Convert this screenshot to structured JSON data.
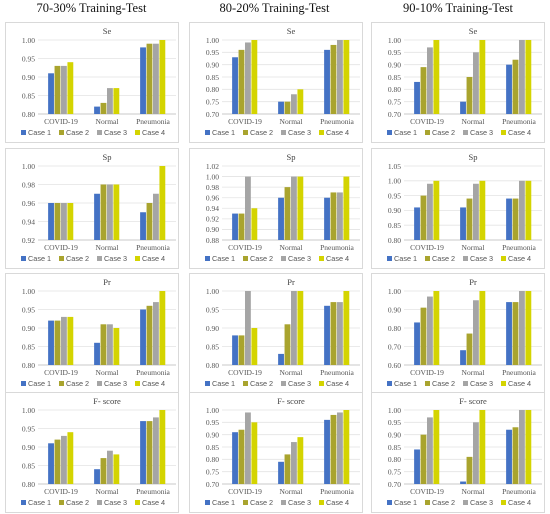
{
  "columns": [
    {
      "title": "70-30% Training-Test"
    },
    {
      "title": "80-20% Training-Test"
    },
    {
      "title": "90-10% Training-Test"
    }
  ],
  "legend": [
    "Case 1",
    "Case 2",
    "Case 3",
    "Case 4"
  ],
  "colors": [
    "#4472c4",
    "#a9a42e",
    "#a5a5a5",
    "#d4d400"
  ],
  "chart_data": [
    {
      "type": "bar",
      "title": "Se",
      "categories": [
        "COVID-19",
        "Normal",
        "Pneumonia"
      ],
      "ylim": [
        0.8,
        1.0
      ],
      "yticks": [
        0.8,
        0.85,
        0.9,
        0.95,
        1.0
      ],
      "series": [
        {
          "name": "Case 1",
          "values": [
            0.91,
            0.82,
            0.98
          ]
        },
        {
          "name": "Case 2",
          "values": [
            0.93,
            0.83,
            0.99
          ]
        },
        {
          "name": "Case 3",
          "values": [
            0.93,
            0.87,
            0.99
          ]
        },
        {
          "name": "Case 4",
          "values": [
            0.94,
            0.87,
            1.0
          ]
        }
      ]
    },
    {
      "type": "bar",
      "title": "Se",
      "categories": [
        "COVID-19",
        "Normal",
        "Pneumonia"
      ],
      "ylim": [
        0.7,
        1.0
      ],
      "yticks": [
        0.7,
        0.75,
        0.8,
        0.85,
        0.9,
        0.95,
        1.0
      ],
      "series": [
        {
          "name": "Case 1",
          "values": [
            0.93,
            0.75,
            0.96
          ]
        },
        {
          "name": "Case 2",
          "values": [
            0.96,
            0.75,
            0.98
          ]
        },
        {
          "name": "Case 3",
          "values": [
            0.99,
            0.78,
            1.0
          ]
        },
        {
          "name": "Case 4",
          "values": [
            1.0,
            0.8,
            1.0
          ]
        }
      ]
    },
    {
      "type": "bar",
      "title": "Se",
      "categories": [
        "COVID-19",
        "Normal",
        "Pneumonia"
      ],
      "ylim": [
        0.7,
        1.0
      ],
      "yticks": [
        0.7,
        0.75,
        0.8,
        0.85,
        0.9,
        0.95,
        1.0
      ],
      "series": [
        {
          "name": "Case 1",
          "values": [
            0.83,
            0.75,
            0.9
          ]
        },
        {
          "name": "Case 2",
          "values": [
            0.89,
            0.85,
            0.92
          ]
        },
        {
          "name": "Case 3",
          "values": [
            0.97,
            0.95,
            1.0
          ]
        },
        {
          "name": "Case 4",
          "values": [
            1.0,
            1.0,
            1.0
          ]
        }
      ]
    },
    {
      "type": "bar",
      "title": "Sp",
      "categories": [
        "COVID-19",
        "Normal",
        "Pneumonia"
      ],
      "ylim": [
        0.92,
        1.0
      ],
      "yticks": [
        0.92,
        0.94,
        0.96,
        0.98,
        1.0
      ],
      "series": [
        {
          "name": "Case 1",
          "values": [
            0.96,
            0.97,
            0.95
          ]
        },
        {
          "name": "Case 2",
          "values": [
            0.96,
            0.98,
            0.96
          ]
        },
        {
          "name": "Case 3",
          "values": [
            0.96,
            0.98,
            0.97
          ]
        },
        {
          "name": "Case 4",
          "values": [
            0.96,
            0.98,
            1.0
          ]
        }
      ]
    },
    {
      "type": "bar",
      "title": "Sp",
      "categories": [
        "COVID-19",
        "Normal",
        "Pneumonia"
      ],
      "ylim": [
        0.88,
        1.02
      ],
      "yticks": [
        0.88,
        0.9,
        0.92,
        0.94,
        0.96,
        0.98,
        1.0,
        1.02
      ],
      "series": [
        {
          "name": "Case 1",
          "values": [
            0.93,
            0.96,
            0.96
          ]
        },
        {
          "name": "Case 2",
          "values": [
            0.93,
            0.98,
            0.97
          ]
        },
        {
          "name": "Case 3",
          "values": [
            1.0,
            1.0,
            0.97
          ]
        },
        {
          "name": "Case 4",
          "values": [
            0.94,
            1.0,
            1.0
          ]
        }
      ]
    },
    {
      "type": "bar",
      "title": "Sp",
      "categories": [
        "COVID-19",
        "Normal",
        "Pneumonia"
      ],
      "ylim": [
        0.8,
        1.05
      ],
      "yticks": [
        0.8,
        0.85,
        0.9,
        0.95,
        1.0,
        1.05
      ],
      "series": [
        {
          "name": "Case 1",
          "values": [
            0.91,
            0.91,
            0.94
          ]
        },
        {
          "name": "Case 2",
          "values": [
            0.95,
            0.94,
            0.94
          ]
        },
        {
          "name": "Case 3",
          "values": [
            0.99,
            0.99,
            1.0
          ]
        },
        {
          "name": "Case 4",
          "values": [
            1.0,
            1.0,
            1.0
          ]
        }
      ]
    },
    {
      "type": "bar",
      "title": "Pr",
      "categories": [
        "COVID-19",
        "Normal",
        "Pneumonia"
      ],
      "ylim": [
        0.8,
        1.0
      ],
      "yticks": [
        0.8,
        0.85,
        0.9,
        0.95,
        1.0
      ],
      "series": [
        {
          "name": "Case 1",
          "values": [
            0.92,
            0.86,
            0.95
          ]
        },
        {
          "name": "Case 2",
          "values": [
            0.92,
            0.91,
            0.96
          ]
        },
        {
          "name": "Case 3",
          "values": [
            0.93,
            0.91,
            0.97
          ]
        },
        {
          "name": "Case 4",
          "values": [
            0.93,
            0.9,
            1.0
          ]
        }
      ]
    },
    {
      "type": "bar",
      "title": "Pr",
      "categories": [
        "COVID-19",
        "Normal",
        "Pneumonia"
      ],
      "ylim": [
        0.8,
        1.0
      ],
      "yticks": [
        0.8,
        0.85,
        0.9,
        0.95,
        1.0
      ],
      "series": [
        {
          "name": "Case 1",
          "values": [
            0.88,
            0.83,
            0.96
          ]
        },
        {
          "name": "Case 2",
          "values": [
            0.88,
            0.91,
            0.97
          ]
        },
        {
          "name": "Case 3",
          "values": [
            1.0,
            1.0,
            0.97
          ]
        },
        {
          "name": "Case 4",
          "values": [
            0.9,
            1.0,
            1.0
          ]
        }
      ]
    },
    {
      "type": "bar",
      "title": "Pr",
      "categories": [
        "COVID-19",
        "Normal",
        "Pneumonia"
      ],
      "ylim": [
        0.6,
        1.0
      ],
      "yticks": [
        0.6,
        0.7,
        0.8,
        0.9,
        1.0
      ],
      "series": [
        {
          "name": "Case 1",
          "values": [
            0.83,
            0.68,
            0.94
          ]
        },
        {
          "name": "Case 2",
          "values": [
            0.91,
            0.77,
            0.94
          ]
        },
        {
          "name": "Case 3",
          "values": [
            0.97,
            0.95,
            1.0
          ]
        },
        {
          "name": "Case 4",
          "values": [
            1.0,
            1.0,
            1.0
          ]
        }
      ]
    },
    {
      "type": "bar",
      "title": "F- score",
      "categories": [
        "COVID-19",
        "Normal",
        "Pneumonia"
      ],
      "ylim": [
        0.8,
        1.0
      ],
      "yticks": [
        0.8,
        0.85,
        0.9,
        0.95,
        1.0
      ],
      "series": [
        {
          "name": "Case 1",
          "values": [
            0.91,
            0.84,
            0.97
          ]
        },
        {
          "name": "Case 2",
          "values": [
            0.92,
            0.87,
            0.97
          ]
        },
        {
          "name": "Case 3",
          "values": [
            0.93,
            0.89,
            0.98
          ]
        },
        {
          "name": "Case 4",
          "values": [
            0.94,
            0.88,
            1.0
          ]
        }
      ]
    },
    {
      "type": "bar",
      "title": "F- score",
      "categories": [
        "COVID-19",
        "Normal",
        "Pneumonia"
      ],
      "ylim": [
        0.7,
        1.0
      ],
      "yticks": [
        0.7,
        0.75,
        0.8,
        0.85,
        0.9,
        0.95,
        1.0
      ],
      "series": [
        {
          "name": "Case 1",
          "values": [
            0.91,
            0.79,
            0.96
          ]
        },
        {
          "name": "Case 2",
          "values": [
            0.92,
            0.82,
            0.98
          ]
        },
        {
          "name": "Case 3",
          "values": [
            0.99,
            0.87,
            0.99
          ]
        },
        {
          "name": "Case 4",
          "values": [
            0.95,
            0.89,
            1.0
          ]
        }
      ]
    },
    {
      "type": "bar",
      "title": "F- score",
      "categories": [
        "COVID-19",
        "Normal",
        "Pneumonia"
      ],
      "ylim": [
        0.7,
        1.0
      ],
      "yticks": [
        0.7,
        0.75,
        0.8,
        0.85,
        0.9,
        0.95,
        1.0
      ],
      "series": [
        {
          "name": "Case 1",
          "values": [
            0.84,
            0.71,
            0.92
          ]
        },
        {
          "name": "Case 2",
          "values": [
            0.9,
            0.81,
            0.93
          ]
        },
        {
          "name": "Case 3",
          "values": [
            0.97,
            0.95,
            1.0
          ]
        },
        {
          "name": "Case 4",
          "values": [
            1.0,
            1.0,
            1.0
          ]
        }
      ]
    }
  ]
}
